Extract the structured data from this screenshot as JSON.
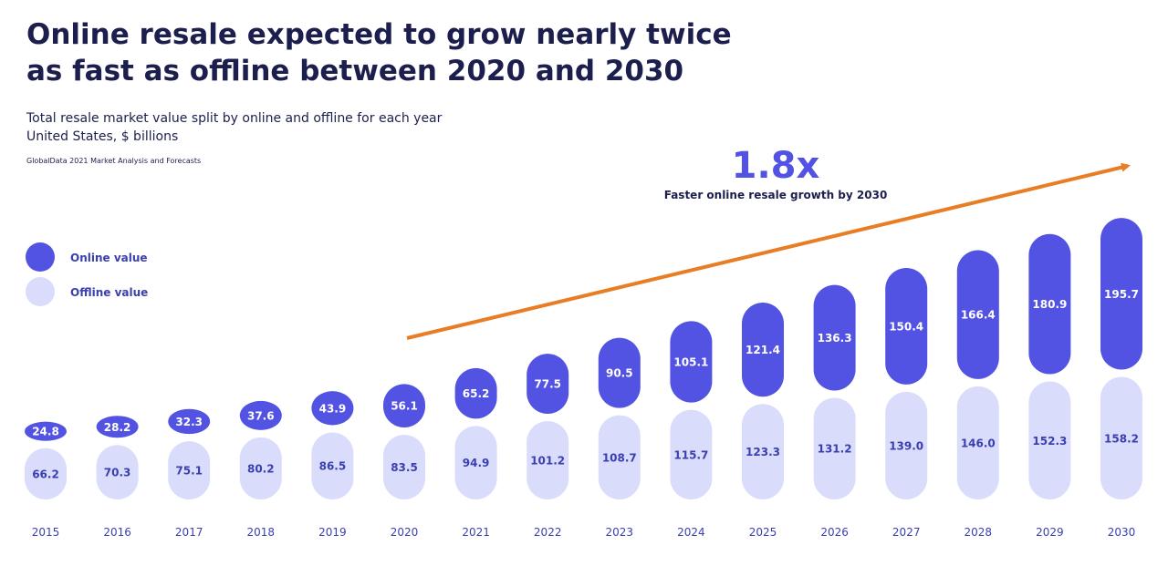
{
  "header": {
    "title_line1": "Online resale expected to grow nearly twice",
    "title_line2": "as fast as offline between 2020 and 2030",
    "subtitle": "Total resale market value split by online and offline for each year",
    "unit": "United States, $ billions",
    "source": "GlobalData 2021 Market Analysis and Forecasts"
  },
  "annotation": {
    "headline": "1.8x",
    "caption": "Faster online resale growth by 2030"
  },
  "colors": {
    "online": "#5252e3",
    "offline": "#d9ddfb",
    "offline_text": "#3a3fb0",
    "year_text": "#3a3fb0",
    "arrow": "#e87d24",
    "headline": "#5252e3",
    "title": "#1c1f4d"
  },
  "chart_data": {
    "type": "bar",
    "stacked": true,
    "title": "Online resale expected to grow nearly twice as fast as offline between 2020 and 2030",
    "ylabel": "$ billions",
    "legend_position": "left",
    "categories": [
      "2015",
      "2016",
      "2017",
      "2018",
      "2019",
      "2020",
      "2021",
      "2022",
      "2023",
      "2024",
      "2025",
      "2026",
      "2027",
      "2028",
      "2029",
      "2030"
    ],
    "series": [
      {
        "name": "Online value",
        "values": [
          24.8,
          28.2,
          32.3,
          37.6,
          43.9,
          56.1,
          65.2,
          77.5,
          90.5,
          105.1,
          121.4,
          136.3,
          150.4,
          166.4,
          180.9,
          195.7
        ]
      },
      {
        "name": "Offline value",
        "values": [
          66.2,
          70.3,
          75.1,
          80.2,
          86.5,
          83.5,
          94.9,
          101.2,
          108.7,
          115.7,
          123.3,
          131.2,
          139.0,
          146.0,
          152.3,
          158.2
        ]
      }
    ],
    "value_labels": {
      "online": [
        "24.8",
        "28.2",
        "32.3",
        "37.6",
        "43.9",
        "56.1",
        "65.2",
        "77.5",
        "90.5",
        "105.1",
        "121.4",
        "136.3",
        "150.4",
        "166.4",
        "180.9",
        "195.7"
      ],
      "offline": [
        "66.2",
        "70.3",
        "75.1",
        "80.2",
        "86.5",
        "83.5",
        "94.9",
        "101.2",
        "108.7",
        "115.7",
        "123.3",
        "131.2",
        "139.0",
        "146.0",
        "152.3",
        "158.2"
      ]
    }
  }
}
